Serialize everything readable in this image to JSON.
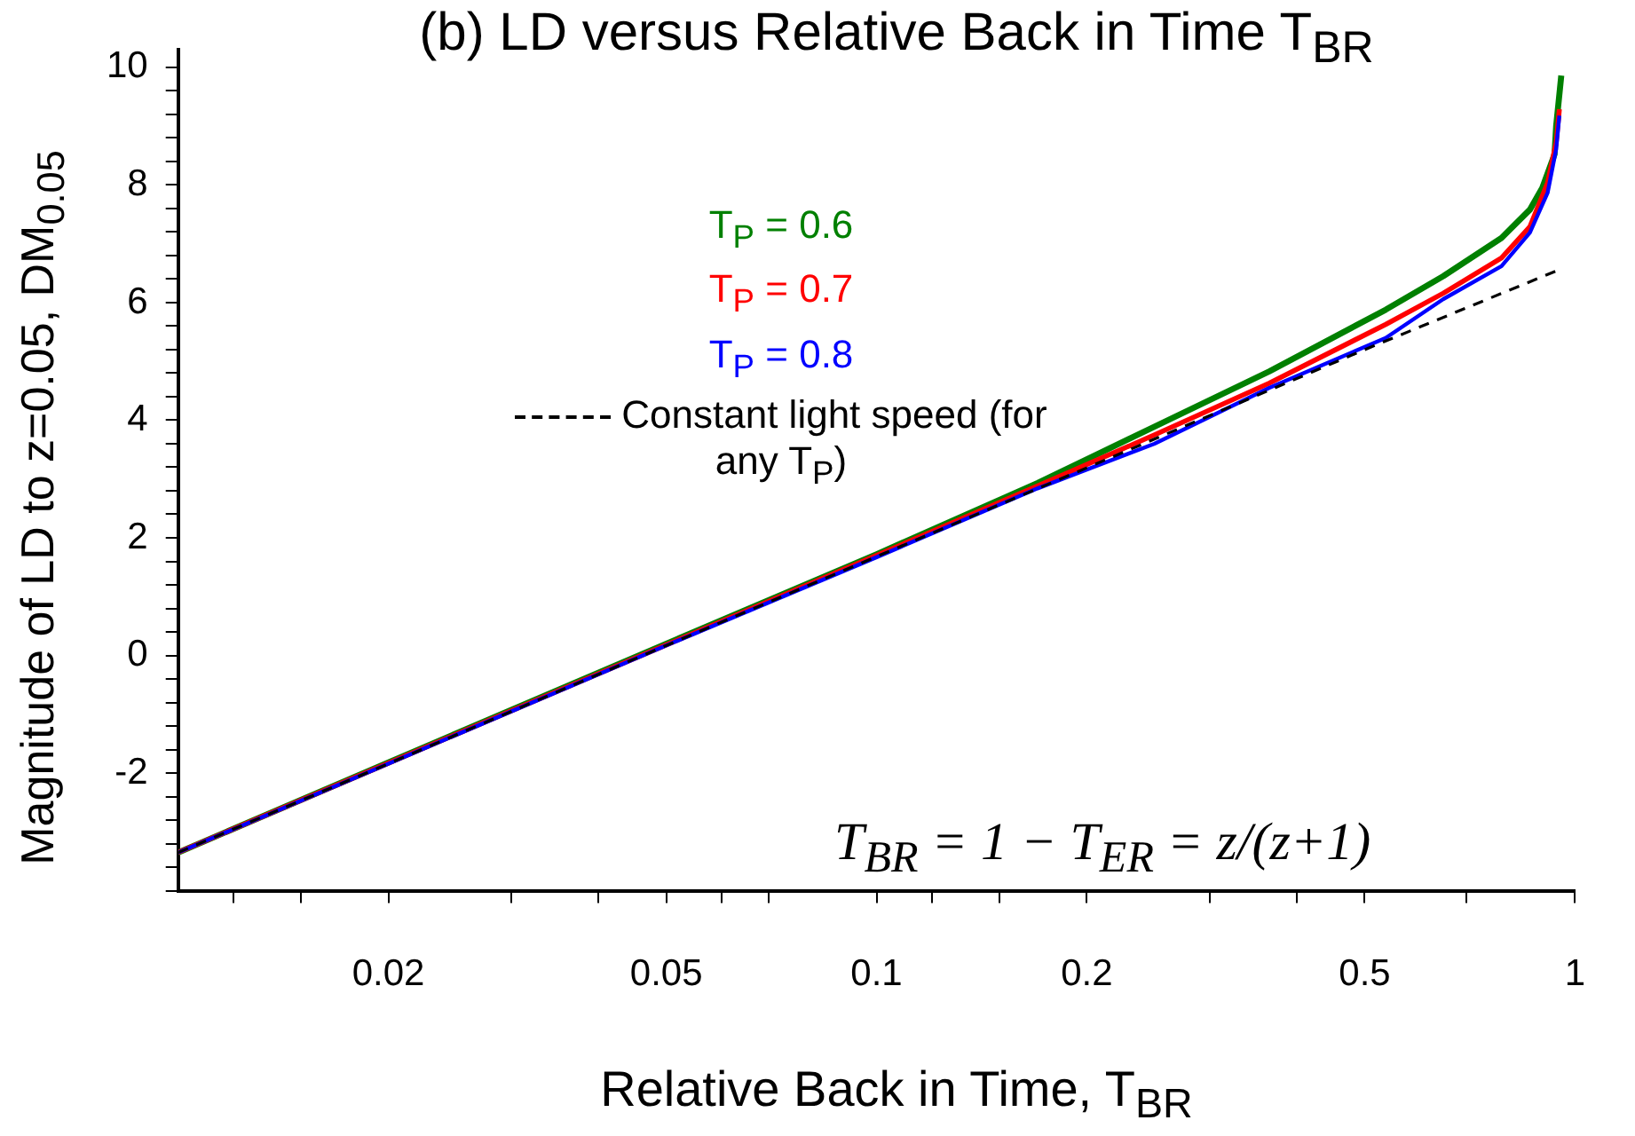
{
  "chart_data": {
    "type": "line",
    "title": "(b) LD versus Relative Back in Time T$_{BR}$",
    "xlabel": "Relative Back in Time, T$_{BR}$",
    "ylabel": "Magnitude of LD to z=0.05, DM$_{0.05}$",
    "log": "x",
    "xlim": [
      0.01,
      1
    ],
    "ylim": [
      -4,
      10.3
    ],
    "xticks": [
      {
        "value": 0.012,
        "label": null
      },
      {
        "value": 0.015,
        "label": null
      },
      0.02,
      {
        "value": 0.03,
        "label": null
      },
      {
        "value": 0.04,
        "label": null
      },
      0.05,
      {
        "value": 0.06,
        "label": null
      },
      {
        "value": 0.07,
        "label": null
      },
      0.1,
      {
        "value": 0.12,
        "label": null
      },
      {
        "value": 0.15,
        "label": null
      },
      0.2,
      {
        "value": 0.3,
        "label": null
      },
      {
        "value": 0.4,
        "label": null
      },
      0.5,
      {
        "value": 0.7,
        "label": null
      },
      1
    ],
    "yticks": [
      {
        "value": -4,
        "label": null
      },
      {
        "value": -3.6,
        "label": null
      },
      {
        "value": -3.2,
        "label": null
      },
      {
        "value": -2.8,
        "label": null
      },
      {
        "value": -2.4,
        "label": null
      },
      -2,
      {
        "value": -1.6,
        "label": null
      },
      {
        "value": -1.2,
        "label": null
      },
      {
        "value": -0.8,
        "label": null
      },
      {
        "value": -0.4,
        "label": null
      },
      0,
      {
        "value": 0.4,
        "label": null
      },
      {
        "value": 0.8,
        "label": null
      },
      {
        "value": 1.2,
        "label": null
      },
      {
        "value": 1.6,
        "label": null
      },
      2,
      {
        "value": 2.4,
        "label": null
      },
      {
        "value": 2.8,
        "label": null
      },
      {
        "value": 3.2,
        "label": null
      },
      {
        "value": 3.6,
        "label": null
      },
      4,
      {
        "value": 4.4,
        "label": null
      },
      {
        "value": 4.8,
        "label": null
      },
      {
        "value": 5.2,
        "label": null
      },
      {
        "value": 5.6,
        "label": null
      },
      6,
      {
        "value": 6.4,
        "label": null
      },
      {
        "value": 6.8,
        "label": null
      },
      {
        "value": 7.2,
        "label": null
      },
      {
        "value": 7.6,
        "label": null
      },
      8,
      {
        "value": 8.4,
        "label": null
      },
      {
        "value": 8.8,
        "label": null
      },
      {
        "value": 9.2,
        "label": null
      },
      {
        "value": 9.6,
        "label": null
      },
      10
    ],
    "grid": false,
    "legend": "top left",
    "marker": "none",
    "series": [
      {
        "name": "T$_{P}$ = 0.6",
        "color": "#008000",
        "x": [
          0.01,
          0.02,
          0.05,
          0.1,
          0.17,
          0.25,
          0.365,
          0.536,
          0.648,
          0.785,
          0.862,
          0.898,
          0.935,
          0.94,
          0.956
        ],
        "values": [
          -3.35,
          -1.82,
          0.2,
          1.72,
          2.93,
          3.89,
          4.83,
          5.88,
          6.45,
          7.1,
          7.58,
          7.95,
          8.52,
          9.0,
          9.86
        ]
      },
      {
        "name": "T$_{P}$ = 0.7",
        "color": "#ff0000",
        "x": [
          0.01,
          0.02,
          0.05,
          0.1,
          0.17,
          0.25,
          0.365,
          0.536,
          0.648,
          0.785,
          0.862,
          0.914,
          0.94,
          0.95
        ],
        "values": [
          -3.35,
          -1.83,
          0.18,
          1.7,
          2.88,
          3.75,
          4.63,
          5.63,
          6.16,
          6.76,
          7.29,
          8.04,
          8.72,
          9.29
        ]
      },
      {
        "name": "T$_{P}$ = 0.8",
        "color": "#0000ff",
        "x": [
          0.01,
          0.02,
          0.05,
          0.1,
          0.17,
          0.25,
          0.365,
          0.536,
          0.648,
          0.785,
          0.862,
          0.914,
          0.94,
          0.95
        ],
        "values": [
          -3.35,
          -1.84,
          0.17,
          1.67,
          2.84,
          3.6,
          4.55,
          5.4,
          6.06,
          6.62,
          7.19,
          7.87,
          8.61,
          9.18
        ]
      },
      {
        "name": "Constant light speed (for any T$_{P}$)",
        "color": "#000000",
        "line_style": "dashed",
        "x": [
          0.01,
          0.02,
          0.05,
          0.1,
          0.2,
          0.5,
          0.95
        ],
        "values": [
          -3.35,
          -1.84,
          0.17,
          1.68,
          3.19,
          5.2,
          6.56
        ]
      }
    ],
    "annotations": [
      "T$_{BR}$ = 1 − T$_{ER}$ = z/(z+1)"
    ]
  }
}
